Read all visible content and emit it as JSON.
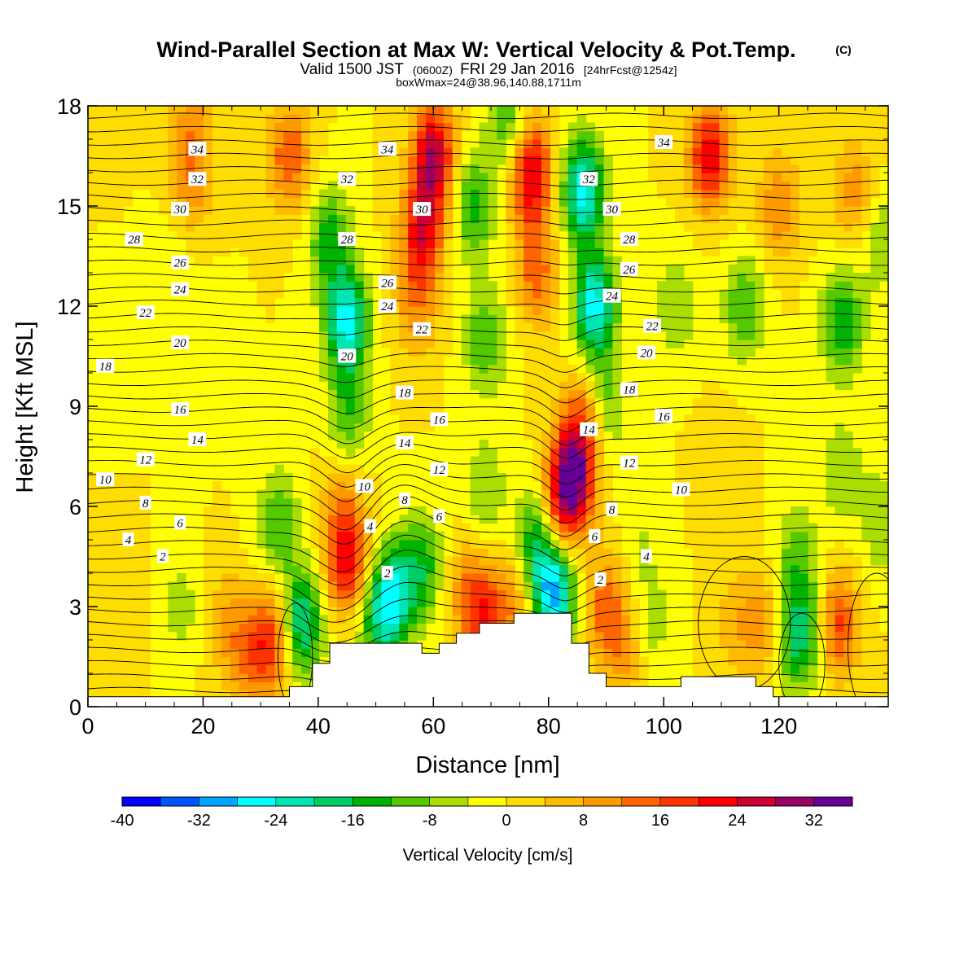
{
  "title": {
    "main": "Wind-Parallel Section at Max W: Vertical Velocity & Pot.Temp.",
    "tag": "(C)",
    "line2_a": "Valid 1500 JST",
    "line2_b": "(0600Z)",
    "line2_c": "FRI 29 Jan 2016",
    "line2_d": "[24hrFcst@1254z]",
    "line3": "boxWmax=24@38.96,140.88,1711m"
  },
  "chart_data": {
    "type": "heatmap",
    "xlabel": "Distance [nm]",
    "ylabel": "Height [Kft MSL]",
    "xlim": [
      0,
      139
    ],
    "ylim": [
      0,
      18
    ],
    "x_ticks": [
      0,
      20,
      40,
      60,
      80,
      100,
      120
    ],
    "y_ticks": [
      0,
      3,
      6,
      9,
      12,
      15,
      18
    ],
    "colorbar": {
      "label": "Vertical Velocity [cm/s]",
      "range": [
        -40,
        36
      ],
      "step": 4,
      "tick_values": [
        -40,
        -32,
        -24,
        -16,
        -8,
        0,
        8,
        16,
        24,
        32
      ],
      "tick_labels": [
        "-40",
        "-32",
        "-24",
        "-16",
        "-8",
        "0",
        "8",
        "16",
        "24",
        "32"
      ],
      "colors": [
        "#0000ff",
        "#0055ff",
        "#00a6ff",
        "#00ffff",
        "#00e6b3",
        "#00cc66",
        "#00b300",
        "#55c800",
        "#aadd00",
        "#ffff00",
        "#ffdd00",
        "#ffbb00",
        "#ff9900",
        "#ff6600",
        "#ff3300",
        "#ff0000",
        "#cc0033",
        "#990066",
        "#660099"
      ]
    },
    "velocity_features": [
      {
        "x": 2,
        "y": 17.6,
        "w": 2
      },
      {
        "x": 18,
        "y": 15.8,
        "w": 10
      },
      {
        "x": 18,
        "y": 17.5,
        "w": 8
      },
      {
        "x": 35,
        "y": 16.5,
        "w": 16
      },
      {
        "x": 60,
        "y": 16.5,
        "w": 28
      },
      {
        "x": 58,
        "y": 14.2,
        "w": 22
      },
      {
        "x": 57,
        "y": 12,
        "w": 10
      },
      {
        "x": 77,
        "y": 16,
        "w": 26
      },
      {
        "x": 78,
        "y": 13,
        "w": 14
      },
      {
        "x": 108,
        "y": 16.5,
        "w": 24
      },
      {
        "x": 120,
        "y": 15,
        "w": 12
      },
      {
        "x": 133,
        "y": 15.5,
        "w": 10
      },
      {
        "x": 42,
        "y": 14,
        "w": -14
      },
      {
        "x": 45,
        "y": 11.5,
        "w": -26
      },
      {
        "x": 45,
        "y": 8.5,
        "w": -12
      },
      {
        "x": 67,
        "y": 15,
        "w": -14
      },
      {
        "x": 69,
        "y": 11,
        "w": -12
      },
      {
        "x": 69,
        "y": 6.5,
        "w": -8
      },
      {
        "x": 86,
        "y": 15.5,
        "w": -26
      },
      {
        "x": 88,
        "y": 12,
        "w": -26
      },
      {
        "x": 90,
        "y": 9,
        "w": -10
      },
      {
        "x": 73,
        "y": 17.5,
        "w": -12
      },
      {
        "x": 102,
        "y": 12,
        "w": -8
      },
      {
        "x": 114,
        "y": 12,
        "w": -12
      },
      {
        "x": 131,
        "y": 11.5,
        "w": -16
      },
      {
        "x": 131,
        "y": 7,
        "w": -8
      },
      {
        "x": 20,
        "y": 11,
        "w": -4
      },
      {
        "x": 4,
        "y": 11,
        "w": -4
      },
      {
        "x": 14,
        "y": 13,
        "w": -4
      },
      {
        "x": 84,
        "y": 6.8,
        "w": 34
      },
      {
        "x": 86,
        "y": 8.5,
        "w": 14
      },
      {
        "x": 81,
        "y": 5.5,
        "w": 14
      },
      {
        "x": 45,
        "y": 4.4,
        "w": 24
      },
      {
        "x": 44,
        "y": 6.5,
        "w": 8
      },
      {
        "x": 33,
        "y": 5.5,
        "w": -12
      },
      {
        "x": 37,
        "y": 2.5,
        "w": -22
      },
      {
        "x": 53,
        "y": 3.3,
        "w": -22
      },
      {
        "x": 58,
        "y": 4.2,
        "w": -14
      },
      {
        "x": 50,
        "y": 2.5,
        "w": -12
      },
      {
        "x": 78,
        "y": 5,
        "w": -18
      },
      {
        "x": 81,
        "y": 3.5,
        "w": -30
      },
      {
        "x": 69,
        "y": 2.5,
        "w": 16
      },
      {
        "x": 66,
        "y": 3.5,
        "w": 10
      },
      {
        "x": 74,
        "y": 3.2,
        "w": 10
      },
      {
        "x": 32,
        "y": 2,
        "w": 18
      },
      {
        "x": 24,
        "y": 2.5,
        "w": 8
      },
      {
        "x": 28,
        "y": 1.5,
        "w": 10
      },
      {
        "x": 16,
        "y": 3,
        "w": -6
      },
      {
        "x": 90,
        "y": 3,
        "w": 14
      },
      {
        "x": 93,
        "y": 1.5,
        "w": 8
      },
      {
        "x": 98,
        "y": 2.5,
        "w": -6
      },
      {
        "x": 112,
        "y": 2.5,
        "w": 6
      },
      {
        "x": 117,
        "y": 2.5,
        "w": 10
      },
      {
        "x": 123,
        "y": 2,
        "w": -16
      },
      {
        "x": 127,
        "y": 2.5,
        "w": -8
      },
      {
        "x": 130,
        "y": 2.5,
        "w": 20
      },
      {
        "x": 123,
        "y": 4.5,
        "w": -10
      },
      {
        "x": 138,
        "y": 5.5,
        "w": -8
      },
      {
        "x": 138,
        "y": 14,
        "w": -8
      },
      {
        "x": 96,
        "y": 5,
        "w": -4
      },
      {
        "x": 110,
        "y": 7,
        "w": 4
      },
      {
        "x": 5,
        "y": 3,
        "w": 4
      }
    ],
    "theta_contours": [
      {
        "label": "2",
        "label_x": 13,
        "label_y": 4.5
      },
      {
        "label": "4",
        "label_x": 7,
        "label_y": 5
      },
      {
        "label": "6",
        "label_x": 16,
        "label_y": 5.5
      },
      {
        "label": "8",
        "label_x": 10,
        "label_y": 6.1
      },
      {
        "label": "10",
        "label_x": 3,
        "label_y": 6.8
      },
      {
        "label": "12",
        "label_x": 10,
        "label_y": 7.4
      },
      {
        "label": "14",
        "label_x": 19,
        "label_y": 8
      },
      {
        "label": "16",
        "label_x": 16,
        "label_y": 8.9
      },
      {
        "label": "18",
        "label_x": 3,
        "label_y": 10.2
      },
      {
        "label": "20",
        "label_x": 16,
        "label_y": 10.9
      },
      {
        "label": "22",
        "label_x": 10,
        "label_y": 11.8
      },
      {
        "label": "24",
        "label_x": 16,
        "label_y": 12.5
      },
      {
        "label": "26",
        "label_x": 16,
        "label_y": 13.3
      },
      {
        "label": "28",
        "label_x": 8,
        "label_y": 14
      },
      {
        "label": "30",
        "label_x": 16,
        "label_y": 14.9
      },
      {
        "label": "32",
        "label_x": 19,
        "label_y": 15.8
      },
      {
        "label": "34",
        "label_x": 19,
        "label_y": 16.7
      },
      {
        "label": "2",
        "label_x": 52,
        "label_y": 4
      },
      {
        "label": "4",
        "label_x": 49,
        "label_y": 5.4
      },
      {
        "label": "6",
        "label_x": 61,
        "label_y": 5.7
      },
      {
        "label": "8",
        "label_x": 55,
        "label_y": 6.2
      },
      {
        "label": "10",
        "label_x": 48,
        "label_y": 6.6
      },
      {
        "label": "12",
        "label_x": 61,
        "label_y": 7.1
      },
      {
        "label": "14",
        "label_x": 55,
        "label_y": 7.9
      },
      {
        "label": "16",
        "label_x": 61,
        "label_y": 8.6
      },
      {
        "label": "18",
        "label_x": 55,
        "label_y": 9.4
      },
      {
        "label": "20",
        "label_x": 45,
        "label_y": 10.5
      },
      {
        "label": "22",
        "label_x": 58,
        "label_y": 11.3
      },
      {
        "label": "24",
        "label_x": 52,
        "label_y": 12
      },
      {
        "label": "26",
        "label_x": 52,
        "label_y": 12.7
      },
      {
        "label": "28",
        "label_x": 45,
        "label_y": 14
      },
      {
        "label": "30",
        "label_x": 58,
        "label_y": 14.9
      },
      {
        "label": "32",
        "label_x": 45,
        "label_y": 15.8
      },
      {
        "label": "34",
        "label_x": 52,
        "label_y": 16.7
      },
      {
        "label": "2",
        "label_x": 89,
        "label_y": 3.8
      },
      {
        "label": "4",
        "label_x": 97,
        "label_y": 4.5
      },
      {
        "label": "6",
        "label_x": 88,
        "label_y": 5.1
      },
      {
        "label": "8",
        "label_x": 91,
        "label_y": 5.9
      },
      {
        "label": "10",
        "label_x": 103,
        "label_y": 6.5
      },
      {
        "label": "12",
        "label_x": 94,
        "label_y": 7.3
      },
      {
        "label": "14",
        "label_x": 87,
        "label_y": 8.3
      },
      {
        "label": "16",
        "label_x": 100,
        "label_y": 8.7
      },
      {
        "label": "18",
        "label_x": 94,
        "label_y": 9.5
      },
      {
        "label": "20",
        "label_x": 97,
        "label_y": 10.6
      },
      {
        "label": "22",
        "label_x": 98,
        "label_y": 11.4
      },
      {
        "label": "24",
        "label_x": 91,
        "label_y": 12.3
      },
      {
        "label": "26",
        "label_x": 94,
        "label_y": 13.1
      },
      {
        "label": "28",
        "label_x": 94,
        "label_y": 14
      },
      {
        "label": "30",
        "label_x": 91,
        "label_y": 14.9
      },
      {
        "label": "32",
        "label_x": 87,
        "label_y": 15.8
      },
      {
        "label": "34",
        "label_x": 100,
        "label_y": 16.9
      }
    ],
    "terrain": [
      [
        0,
        0.3
      ],
      [
        35,
        0.3
      ],
      [
        35,
        0.6
      ],
      [
        39,
        0.6
      ],
      [
        39,
        1.3
      ],
      [
        42,
        1.3
      ],
      [
        42,
        1.9
      ],
      [
        58,
        1.9
      ],
      [
        58,
        1.6
      ],
      [
        61,
        1.6
      ],
      [
        61,
        1.9
      ],
      [
        64,
        1.9
      ],
      [
        64,
        2.2
      ],
      [
        68,
        2.2
      ],
      [
        68,
        2.5
      ],
      [
        74,
        2.5
      ],
      [
        74,
        2.8
      ],
      [
        84,
        2.8
      ],
      [
        84,
        1.9
      ],
      [
        87,
        1.9
      ],
      [
        87,
        1.0
      ],
      [
        90,
        1.0
      ],
      [
        90,
        0.6
      ],
      [
        103,
        0.6
      ],
      [
        103,
        0.9
      ],
      [
        116,
        0.9
      ],
      [
        116,
        0.6
      ],
      [
        119,
        0.6
      ],
      [
        119,
        0.3
      ],
      [
        139,
        0.3
      ],
      [
        139,
        0
      ],
      [
        0,
        0
      ]
    ]
  }
}
